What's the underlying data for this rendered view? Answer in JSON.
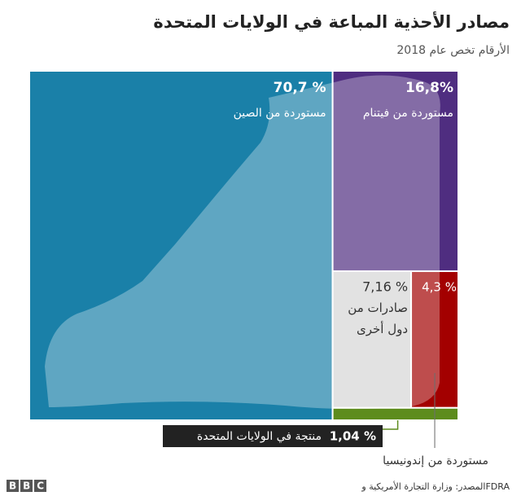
{
  "chart_data": {
    "type": "treemap",
    "title": "مصادر الأحذية المباعة في الولايات المتحدة",
    "subtitle": "الأرقام تخص عام 2018",
    "categories": [
      "مستوردة من الصين",
      "مستوردة من فيتنام",
      "صادرات من دول أخرى",
      "مستوردة من إندونيسيا",
      "منتجة في الولايات المتحدة"
    ],
    "values": [
      70.7,
      16.8,
      7.16,
      4.3,
      1.04
    ],
    "value_labels": [
      "70,7 %",
      "16,8%",
      "7,16 %",
      "4,3 %",
      "1,04 %"
    ],
    "colors": [
      "#1a80a8",
      "#4f2d80",
      "#d6d6d6",
      "#a30000",
      "#5d8c1d"
    ],
    "source": "المصدر: وزارة التجارة الأمريكية وFDRA",
    "logo": "BBC"
  }
}
